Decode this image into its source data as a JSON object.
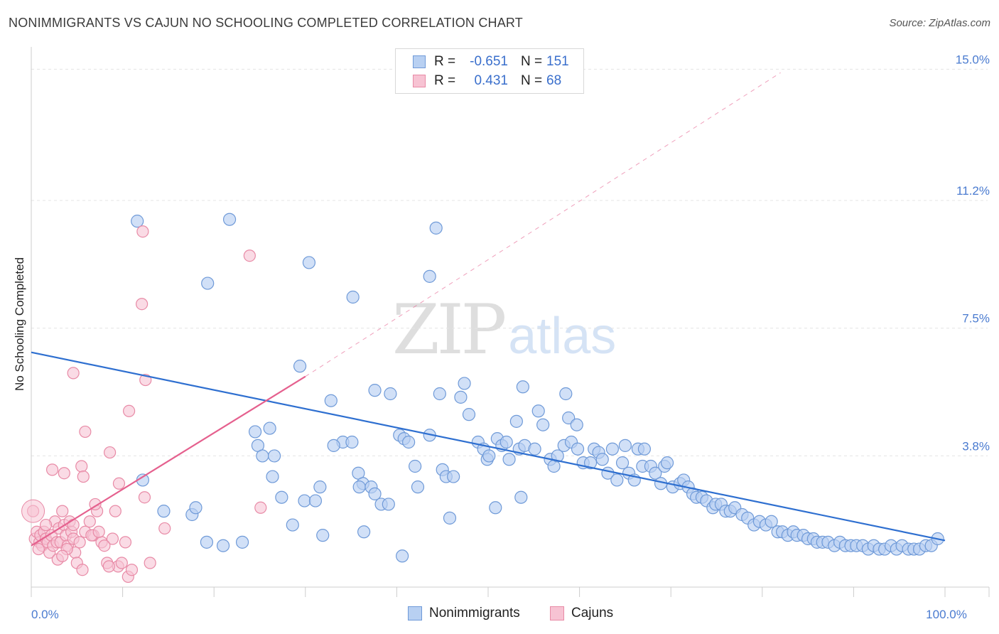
{
  "title": "NONIMMIGRANTS VS CAJUN NO SCHOOLING COMPLETED CORRELATION CHART",
  "source": "Source: ZipAtlas.com",
  "watermark": {
    "part1": "ZIP",
    "part2": "atlas"
  },
  "legend_top": {
    "rows": [
      {
        "r_label": "R =",
        "r_value": "-0.651",
        "n_label": "N =",
        "n_value": "151"
      },
      {
        "r_label": "R =",
        "r_value": "0.431",
        "n_label": "N =",
        "n_value": "68"
      }
    ]
  },
  "legend_bottom": [
    "Nonimmigrants",
    "Cajuns"
  ],
  "colors": {
    "blue_fill": "#b8d0f2",
    "blue_stroke": "#6f9ad8",
    "blue_line": "#2e6fd0",
    "pink_fill": "#f7c3d3",
    "pink_stroke": "#e88aa6",
    "pink_line": "#e5608e",
    "grid": "#e4e4e4",
    "tick_text": "#4a7bd0"
  },
  "chart_data": {
    "type": "scatter",
    "title": "NONIMMIGRANTS VS CAJUN NO SCHOOLING COMPLETED CORRELATION CHART",
    "xlabel": "",
    "ylabel": "No Schooling Completed",
    "xlim": [
      0,
      100
    ],
    "ylim": [
      0,
      15.4
    ],
    "x_ticks": [
      {
        "value": 0,
        "label": "0.0%"
      },
      {
        "value": 100,
        "label": "100.0%"
      }
    ],
    "y_ticks": [
      {
        "value": 3.8,
        "label": "3.8%"
      },
      {
        "value": 7.5,
        "label": "7.5%"
      },
      {
        "value": 11.2,
        "label": "11.2%"
      },
      {
        "value": 15.0,
        "label": "15.0%"
      }
    ],
    "grid": true,
    "legend": "top-center",
    "series": [
      {
        "name": "Nonimmigrants",
        "r": -0.651,
        "n": 151,
        "trend": {
          "x": [
            0,
            100
          ],
          "y": [
            6.8,
            1.35
          ],
          "style": "solid"
        },
        "points": [
          [
            11.6,
            10.6
          ],
          [
            21.7,
            10.65
          ],
          [
            19.3,
            8.8
          ],
          [
            30.4,
            9.4
          ],
          [
            35.2,
            8.4
          ],
          [
            43.6,
            9.0
          ],
          [
            44.3,
            10.4
          ],
          [
            29.4,
            6.4
          ],
          [
            32.8,
            5.4
          ],
          [
            37.6,
            5.7
          ],
          [
            39.3,
            5.6
          ],
          [
            44.7,
            5.6
          ],
          [
            47.0,
            5.5
          ],
          [
            47.4,
            5.9
          ],
          [
            53.8,
            5.8
          ],
          [
            58.5,
            5.6
          ],
          [
            24.5,
            4.5
          ],
          [
            26.1,
            4.6
          ],
          [
            24.8,
            4.1
          ],
          [
            25.3,
            3.8
          ],
          [
            26.6,
            3.8
          ],
          [
            26.4,
            3.2
          ],
          [
            27.4,
            2.6
          ],
          [
            29.9,
            2.5
          ],
          [
            31.1,
            2.5
          ],
          [
            31.6,
            2.9
          ],
          [
            34.1,
            4.2
          ],
          [
            33.1,
            4.1
          ],
          [
            35.1,
            4.2
          ],
          [
            35.8,
            3.3
          ],
          [
            36.3,
            3.0
          ],
          [
            35.9,
            2.9
          ],
          [
            37.2,
            2.9
          ],
          [
            37.6,
            2.7
          ],
          [
            38.3,
            2.4
          ],
          [
            39.1,
            2.4
          ],
          [
            40.3,
            4.4
          ],
          [
            40.8,
            4.3
          ],
          [
            41.3,
            4.2
          ],
          [
            42.0,
            3.5
          ],
          [
            42.3,
            2.9
          ],
          [
            43.6,
            4.4
          ],
          [
            45.0,
            3.4
          ],
          [
            45.4,
            3.2
          ],
          [
            46.2,
            3.2
          ],
          [
            47.9,
            5.0
          ],
          [
            48.9,
            4.2
          ],
          [
            49.5,
            4.0
          ],
          [
            49.9,
            3.7
          ],
          [
            50.1,
            3.8
          ],
          [
            51.0,
            4.3
          ],
          [
            50.8,
            2.3
          ],
          [
            51.5,
            4.1
          ],
          [
            52.0,
            4.2
          ],
          [
            52.3,
            3.7
          ],
          [
            53.1,
            4.8
          ],
          [
            53.4,
            4.0
          ],
          [
            54.0,
            4.1
          ],
          [
            55.1,
            4.0
          ],
          [
            55.5,
            5.1
          ],
          [
            56.0,
            4.7
          ],
          [
            56.8,
            3.7
          ],
          [
            57.2,
            3.5
          ],
          [
            57.6,
            3.8
          ],
          [
            58.3,
            4.1
          ],
          [
            58.8,
            4.9
          ],
          [
            59.1,
            4.2
          ],
          [
            59.7,
            4.7
          ],
          [
            59.8,
            4.0
          ],
          [
            60.4,
            3.6
          ],
          [
            61.2,
            3.6
          ],
          [
            61.6,
            4.0
          ],
          [
            62.1,
            3.9
          ],
          [
            62.5,
            3.7
          ],
          [
            63.1,
            3.3
          ],
          [
            63.6,
            4.0
          ],
          [
            64.1,
            3.1
          ],
          [
            64.7,
            3.6
          ],
          [
            65.0,
            4.1
          ],
          [
            65.4,
            3.3
          ],
          [
            66.0,
            3.1
          ],
          [
            66.4,
            4.0
          ],
          [
            66.9,
            3.5
          ],
          [
            67.1,
            4.0
          ],
          [
            67.8,
            3.5
          ],
          [
            68.3,
            3.3
          ],
          [
            68.9,
            3.0
          ],
          [
            69.3,
            3.5
          ],
          [
            69.6,
            3.6
          ],
          [
            70.2,
            2.9
          ],
          [
            71.0,
            3.0
          ],
          [
            71.4,
            3.1
          ],
          [
            71.9,
            2.9
          ],
          [
            72.4,
            2.7
          ],
          [
            72.8,
            2.6
          ],
          [
            73.4,
            2.6
          ],
          [
            73.9,
            2.5
          ],
          [
            74.6,
            2.3
          ],
          [
            74.9,
            2.4
          ],
          [
            75.5,
            2.4
          ],
          [
            76.0,
            2.2
          ],
          [
            76.5,
            2.2
          ],
          [
            77.0,
            2.3
          ],
          [
            77.8,
            2.1
          ],
          [
            78.4,
            2.0
          ],
          [
            79.1,
            1.8
          ],
          [
            79.7,
            1.9
          ],
          [
            80.4,
            1.8
          ],
          [
            81.0,
            1.9
          ],
          [
            81.7,
            1.6
          ],
          [
            82.2,
            1.6
          ],
          [
            82.8,
            1.5
          ],
          [
            83.4,
            1.6
          ],
          [
            83.8,
            1.5
          ],
          [
            84.5,
            1.5
          ],
          [
            85.0,
            1.4
          ],
          [
            85.6,
            1.4
          ],
          [
            86.0,
            1.3
          ],
          [
            86.6,
            1.3
          ],
          [
            87.2,
            1.3
          ],
          [
            87.9,
            1.2
          ],
          [
            88.5,
            1.3
          ],
          [
            89.1,
            1.2
          ],
          [
            89.7,
            1.2
          ],
          [
            90.3,
            1.2
          ],
          [
            91.0,
            1.2
          ],
          [
            91.6,
            1.1
          ],
          [
            92.2,
            1.2
          ],
          [
            92.8,
            1.1
          ],
          [
            93.4,
            1.1
          ],
          [
            94.1,
            1.2
          ],
          [
            94.7,
            1.1
          ],
          [
            95.3,
            1.2
          ],
          [
            96.0,
            1.1
          ],
          [
            96.6,
            1.1
          ],
          [
            97.2,
            1.1
          ],
          [
            97.9,
            1.2
          ],
          [
            98.5,
            1.2
          ],
          [
            99.2,
            1.4
          ],
          [
            12.2,
            3.1
          ],
          [
            14.5,
            2.2
          ],
          [
            17.6,
            2.1
          ],
          [
            18.0,
            2.3
          ],
          [
            19.2,
            1.3
          ],
          [
            21.0,
            1.2
          ],
          [
            23.1,
            1.3
          ],
          [
            28.6,
            1.8
          ],
          [
            31.9,
            1.5
          ],
          [
            36.4,
            1.6
          ],
          [
            40.6,
            0.9
          ],
          [
            45.8,
            2.0
          ],
          [
            53.6,
            2.6
          ]
        ]
      },
      {
        "name": "Cajuns",
        "r": 0.431,
        "n": 68,
        "trend": {
          "x": [
            0,
            30
          ],
          "y": [
            1.2,
            6.1
          ],
          "style": "solid",
          "extended_to": [
            82,
            14.9
          ]
        },
        "points": [
          [
            0.2,
            2.2
          ],
          [
            0.4,
            1.4
          ],
          [
            0.6,
            1.6
          ],
          [
            0.9,
            1.3
          ],
          [
            1.0,
            1.5
          ],
          [
            1.2,
            1.2
          ],
          [
            1.4,
            1.6
          ],
          [
            1.6,
            1.4
          ],
          [
            1.8,
            1.3
          ],
          [
            2.0,
            1.0
          ],
          [
            2.2,
            1.5
          ],
          [
            2.4,
            1.2
          ],
          [
            2.6,
            1.9
          ],
          [
            2.8,
            1.3
          ],
          [
            3.0,
            1.7
          ],
          [
            3.2,
            1.3
          ],
          [
            3.4,
            2.2
          ],
          [
            3.6,
            1.8
          ],
          [
            3.8,
            1.5
          ],
          [
            4.0,
            1.2
          ],
          [
            4.2,
            1.9
          ],
          [
            4.4,
            1.6
          ],
          [
            4.6,
            1.4
          ],
          [
            4.8,
            1.0
          ],
          [
            2.3,
            3.4
          ],
          [
            3.6,
            3.3
          ],
          [
            5.5,
            3.5
          ],
          [
            5.7,
            3.2
          ],
          [
            4.6,
            1.8
          ],
          [
            3.9,
            1.1
          ],
          [
            5.3,
            1.3
          ],
          [
            5.9,
            1.6
          ],
          [
            6.4,
            1.9
          ],
          [
            6.8,
            1.5
          ],
          [
            7.2,
            2.2
          ],
          [
            7.0,
            2.4
          ],
          [
            7.7,
            1.3
          ],
          [
            8.3,
            0.7
          ],
          [
            8.9,
            1.4
          ],
          [
            9.2,
            2.2
          ],
          [
            9.5,
            0.6
          ],
          [
            9.9,
            0.7
          ],
          [
            10.3,
            1.3
          ],
          [
            10.6,
            0.3
          ],
          [
            11.0,
            0.5
          ],
          [
            12.4,
            2.6
          ],
          [
            13.0,
            0.7
          ],
          [
            14.6,
            1.7
          ],
          [
            4.6,
            6.2
          ],
          [
            5.9,
            4.5
          ],
          [
            8.6,
            3.9
          ],
          [
            9.6,
            3.0
          ],
          [
            10.7,
            5.1
          ],
          [
            12.5,
            6.0
          ],
          [
            12.1,
            8.2
          ],
          [
            12.2,
            10.3
          ],
          [
            23.9,
            9.6
          ],
          [
            25.1,
            2.3
          ],
          [
            6.6,
            1.5
          ],
          [
            7.4,
            1.6
          ],
          [
            8.0,
            1.2
          ],
          [
            0.8,
            1.1
          ],
          [
            1.6,
            1.8
          ],
          [
            2.9,
            0.8
          ],
          [
            3.4,
            0.9
          ],
          [
            5.0,
            0.7
          ],
          [
            5.6,
            0.5
          ],
          [
            8.5,
            0.6
          ]
        ]
      }
    ]
  }
}
